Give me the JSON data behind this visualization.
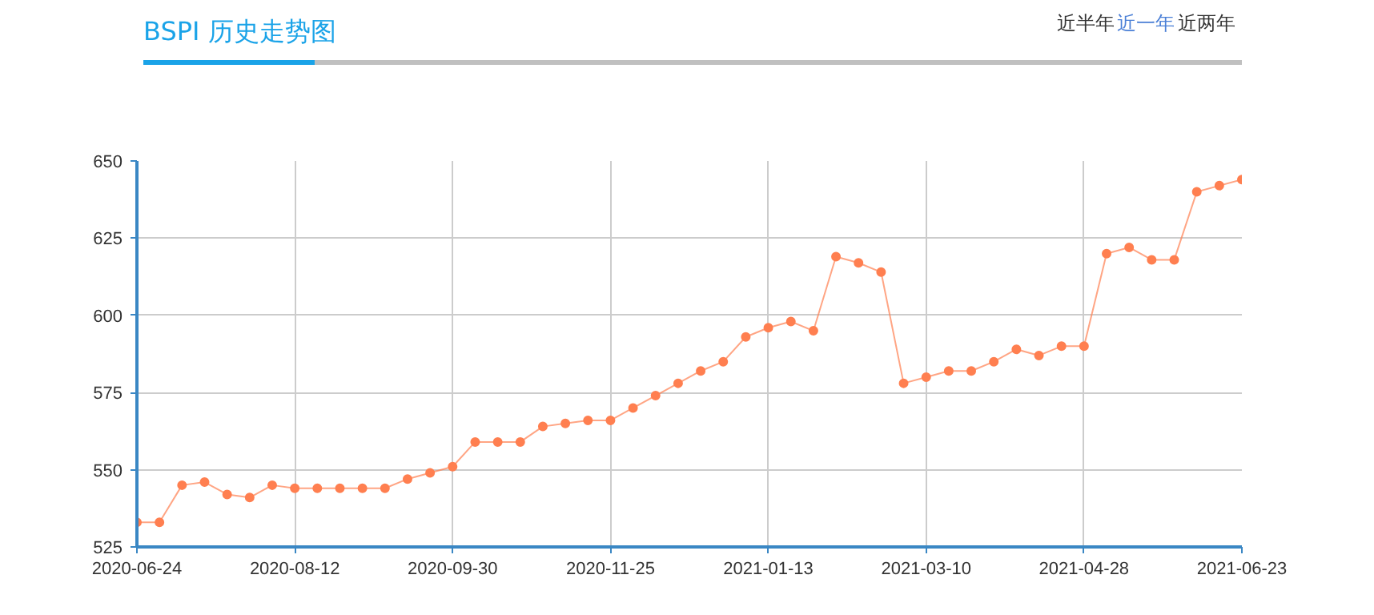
{
  "chart_data": {
    "type": "line",
    "title": "BSPI 历史走势图",
    "annotations": [
      "近半年",
      "近一年",
      "近两年"
    ],
    "categories": [
      "2020-06-24",
      null,
      null,
      null,
      null,
      null,
      null,
      "2020-08-12",
      null,
      null,
      null,
      null,
      null,
      null,
      "2020-09-30",
      null,
      null,
      null,
      null,
      null,
      null,
      "2020-11-25",
      null,
      null,
      null,
      null,
      null,
      null,
      "2021-01-13",
      null,
      null,
      null,
      null,
      null,
      null,
      "2021-03-10",
      null,
      null,
      null,
      null,
      null,
      null,
      "2021-04-28",
      null,
      null,
      null,
      null,
      null,
      null,
      "2021-06-23"
    ],
    "series": [
      {
        "color": "#ff7f50",
        "values": [
          533,
          533,
          545,
          546,
          542,
          541,
          545,
          544,
          544,
          544,
          544,
          544,
          547,
          549,
          551,
          559,
          559,
          559,
          564,
          565,
          566,
          566,
          570,
          574,
          578,
          582,
          585,
          593,
          596,
          598,
          595,
          619,
          617,
          614,
          578,
          580,
          582,
          582,
          585,
          589,
          587,
          590,
          590,
          620,
          622,
          618,
          618,
          640,
          642,
          644
        ]
      }
    ],
    "ylim": [
      525,
      650
    ],
    "yticks": [
      525,
      550,
      575,
      600,
      625,
      650
    ],
    "grid": true,
    "marker": "circle",
    "line_style": "solid"
  }
}
